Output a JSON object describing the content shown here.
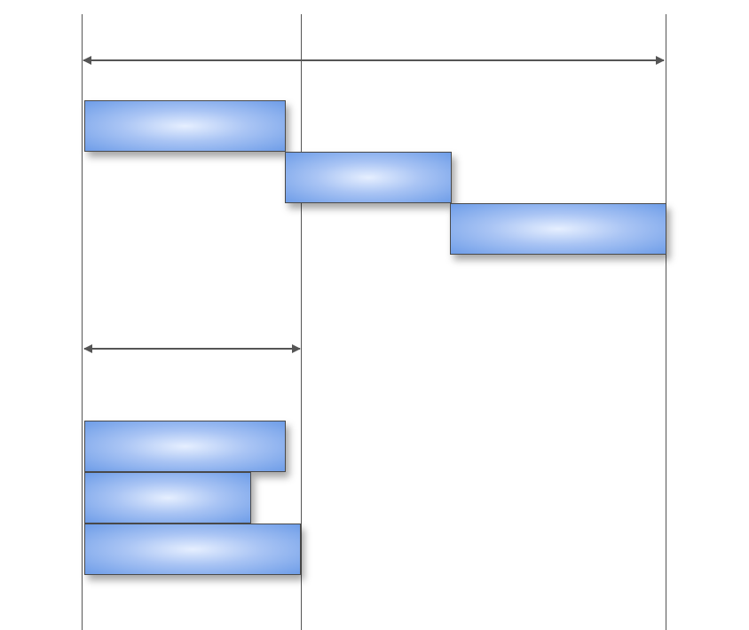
{
  "diagram": {
    "description_free": true,
    "colors": {
      "line": "#555555",
      "block_edge": "#5b8ee6",
      "block_center": "#e6efff",
      "block_border": "#4a4a4a"
    },
    "icons": {
      "arrow_long": "double-headed-arrow",
      "arrow_short": "double-headed-arrow"
    },
    "sequential_blocks": 3,
    "parallel_blocks": 3
  }
}
